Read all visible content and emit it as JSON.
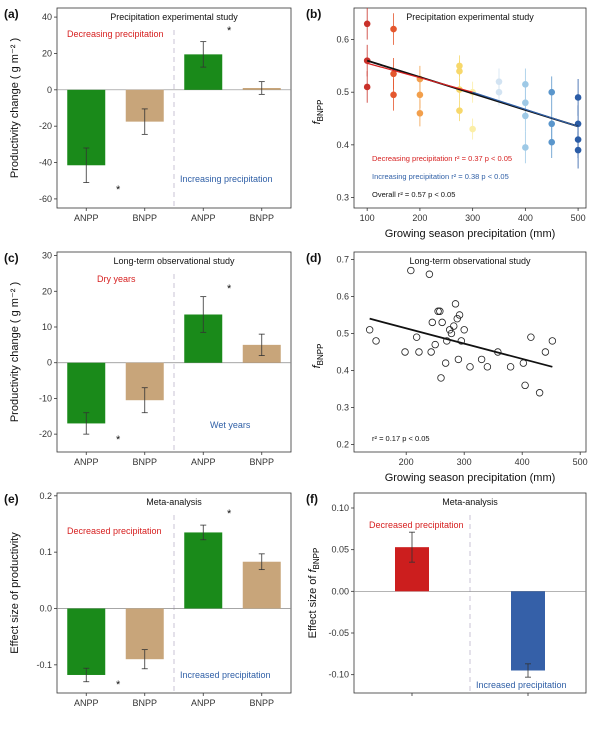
{
  "colors": {
    "anpp": "#1a8a1a",
    "bnpp": "#c8a57a",
    "decrease_text": "#d61f1f",
    "increase_text": "#2f5fa6",
    "bar_decrease": "#cc1e1e",
    "bar_increase": "#3560a8"
  },
  "panels": {
    "a": {
      "letter": "(a)",
      "title": "Precipitation experimental study",
      "ylabel": "Productivity change ( g m⁻² )",
      "left_annotation": "Decreasing precipitation",
      "right_annotation": "Increasing precipitation",
      "left_star": "*",
      "right_star": "*"
    },
    "b": {
      "letter": "(b)",
      "title": "Precipitation experimental study",
      "xlabel": "Growing season precipitation (mm)",
      "ylabel": "f",
      "ylabel_sub": "BNPP",
      "stats": [
        {
          "text": "Decreasing precipitation  r² = 0.37   p < 0.05",
          "color": "#d61f1f"
        },
        {
          "text": "Increasing precipitation  r² = 0.38   p < 0.05",
          "color": "#2f5fa6"
        },
        {
          "text": "Overall   r² = 0.57   p < 0.05",
          "color": "#111111"
        }
      ]
    },
    "c": {
      "letter": "(c)",
      "title": "Long-term observational study",
      "ylabel": "Productivity change ( g m⁻² )",
      "left_annotation": "Dry years",
      "right_annotation": "Wet years",
      "left_star": "*",
      "right_star": "*"
    },
    "d": {
      "letter": "(d)",
      "title": "Long-term observational study",
      "xlabel": "Growing season precipitation (mm)",
      "ylabel": "f",
      "ylabel_sub": "BNPP",
      "stat": "r² = 0.17   p < 0.05"
    },
    "e": {
      "letter": "(e)",
      "title": "Meta-analysis",
      "ylabel": "Effect size of productivity",
      "left_annotation": "Decreased precipitation",
      "right_annotation": "Increased precipitation",
      "left_star": "*",
      "right_star": "*"
    },
    "f": {
      "letter": "(f)",
      "title": "Meta-analysis",
      "ylabel": "Effect size of ",
      "ylabel_f": "f",
      "ylabel_sub": "BNPP",
      "left_annotation": "Decreased precipitation",
      "right_annotation": "Increased precipitation"
    }
  },
  "chart_data": [
    {
      "id": "a",
      "type": "bar",
      "categories": [
        "ANPP",
        "BNPP",
        "ANPP",
        "BNPP"
      ],
      "values": [
        -41.5,
        -17.5,
        19.5,
        1
      ],
      "errors": [
        9.5,
        7,
        7,
        3.5
      ],
      "ylim": [
        -65,
        45
      ],
      "yticks": [
        -60,
        -40,
        -20,
        0,
        20,
        40
      ]
    },
    {
      "id": "b",
      "type": "scatter",
      "xlim": [
        75,
        515
      ],
      "ylim": [
        0.28,
        0.66
      ],
      "xticks": [
        100,
        200,
        300,
        400,
        500
      ],
      "yticks": [
        0.3,
        0.4,
        0.5,
        0.6
      ],
      "points": [
        {
          "x": 100,
          "y": 0.63,
          "e": 0.03,
          "c": "#c9312a"
        },
        {
          "x": 100,
          "y": 0.56,
          "e": 0.03,
          "c": "#c9312a"
        },
        {
          "x": 100,
          "y": 0.51,
          "e": 0.03,
          "c": "#c9312a"
        },
        {
          "x": 150,
          "y": 0.62,
          "e": 0.03,
          "c": "#e4572e"
        },
        {
          "x": 150,
          "y": 0.535,
          "e": 0.03,
          "c": "#e4572e"
        },
        {
          "x": 150,
          "y": 0.495,
          "e": 0.03,
          "c": "#e4572e"
        },
        {
          "x": 200,
          "y": 0.525,
          "e": 0.025,
          "c": "#f29f4c"
        },
        {
          "x": 200,
          "y": 0.495,
          "e": 0.025,
          "c": "#f29f4c"
        },
        {
          "x": 200,
          "y": 0.46,
          "e": 0.025,
          "c": "#f29f4c"
        },
        {
          "x": 275,
          "y": 0.55,
          "e": 0.02,
          "c": "#f7d86b"
        },
        {
          "x": 275,
          "y": 0.54,
          "e": 0.02,
          "c": "#f7d86b"
        },
        {
          "x": 275,
          "y": 0.505,
          "e": 0.02,
          "c": "#f7d86b"
        },
        {
          "x": 275,
          "y": 0.465,
          "e": 0.02,
          "c": "#f7d86b"
        },
        {
          "x": 300,
          "y": 0.5,
          "e": 0.02,
          "c": "#fbeea6"
        },
        {
          "x": 300,
          "y": 0.43,
          "e": 0.02,
          "c": "#fbeea6"
        },
        {
          "x": 350,
          "y": 0.52,
          "e": 0.025,
          "c": "#d2e3f2"
        },
        {
          "x": 350,
          "y": 0.5,
          "e": 0.025,
          "c": "#d2e3f2"
        },
        {
          "x": 400,
          "y": 0.515,
          "e": 0.03,
          "c": "#9ec9e6"
        },
        {
          "x": 400,
          "y": 0.48,
          "e": 0.03,
          "c": "#9ec9e6"
        },
        {
          "x": 400,
          "y": 0.455,
          "e": 0.03,
          "c": "#9ec9e6"
        },
        {
          "x": 400,
          "y": 0.395,
          "e": 0.03,
          "c": "#9ec9e6"
        },
        {
          "x": 450,
          "y": 0.5,
          "e": 0.03,
          "c": "#5a96cc"
        },
        {
          "x": 450,
          "y": 0.44,
          "e": 0.03,
          "c": "#5a96cc"
        },
        {
          "x": 450,
          "y": 0.405,
          "e": 0.03,
          "c": "#5a96cc"
        },
        {
          "x": 500,
          "y": 0.49,
          "e": 0.035,
          "c": "#2b5ca6"
        },
        {
          "x": 500,
          "y": 0.44,
          "e": 0.035,
          "c": "#2b5ca6"
        },
        {
          "x": 500,
          "y": 0.41,
          "e": 0.035,
          "c": "#2b5ca6"
        },
        {
          "x": 500,
          "y": 0.39,
          "e": 0.035,
          "c": "#2b5ca6"
        }
      ],
      "lines": [
        {
          "x": [
            100,
            500
          ],
          "y": [
            0.56,
            0.435
          ],
          "color": "#111111"
        },
        {
          "x": [
            100,
            300
          ],
          "y": [
            0.555,
            0.5
          ],
          "color": "#d61f1f"
        },
        {
          "x": [
            300,
            500
          ],
          "y": [
            0.5,
            0.435
          ],
          "color": "#2f5fa6"
        }
      ]
    },
    {
      "id": "c",
      "type": "bar",
      "categories": [
        "ANPP",
        "BNPP",
        "ANPP",
        "BNPP"
      ],
      "values": [
        -17,
        -10.5,
        13.5,
        5
      ],
      "errors": [
        3,
        3.5,
        5,
        3
      ],
      "ylim": [
        -25,
        31
      ],
      "yticks": [
        -20,
        -10,
        0,
        10,
        20,
        30
      ]
    },
    {
      "id": "d",
      "type": "scatter",
      "xlim": [
        110,
        510
      ],
      "ylim": [
        0.18,
        0.72
      ],
      "xticks": [
        200,
        300,
        400,
        500
      ],
      "yticks": [
        0.2,
        0.3,
        0.4,
        0.5,
        0.6,
        0.7
      ],
      "x": [
        137,
        148,
        198,
        208,
        218,
        222,
        240,
        243,
        245,
        250,
        255,
        258,
        260,
        262,
        268,
        270,
        275,
        278,
        282,
        285,
        288,
        290,
        292,
        295,
        300,
        310,
        330,
        340,
        358,
        380,
        402,
        405,
        415,
        430,
        440,
        452
      ],
      "y": [
        0.51,
        0.48,
        0.45,
        0.67,
        0.49,
        0.45,
        0.66,
        0.45,
        0.53,
        0.47,
        0.56,
        0.56,
        0.38,
        0.53,
        0.42,
        0.48,
        0.51,
        0.5,
        0.52,
        0.58,
        0.54,
        0.43,
        0.55,
        0.48,
        0.51,
        0.41,
        0.43,
        0.41,
        0.45,
        0.41,
        0.42,
        0.36,
        0.49,
        0.34,
        0.45,
        0.48
      ],
      "fit": {
        "x": [
          137,
          452
        ],
        "y": [
          0.54,
          0.41
        ]
      }
    },
    {
      "id": "e",
      "type": "bar",
      "categories": [
        "ANPP",
        "BNPP",
        "ANPP",
        "BNPP"
      ],
      "values": [
        -0.118,
        -0.09,
        0.135,
        0.083
      ],
      "errors": [
        0.012,
        0.017,
        0.013,
        0.014
      ],
      "ylim": [
        -0.15,
        0.205
      ],
      "yticks": [
        -0.1,
        0.0,
        0.1,
        0.2
      ]
    },
    {
      "id": "f",
      "type": "bar",
      "categories": [
        "",
        ""
      ],
      "values": [
        0.053,
        -0.095
      ],
      "errors": [
        0.018,
        0.008
      ],
      "ylim": [
        -0.122,
        0.118
      ],
      "yticks": [
        -0.1,
        -0.05,
        0.0,
        0.05,
        0.1
      ]
    }
  ]
}
